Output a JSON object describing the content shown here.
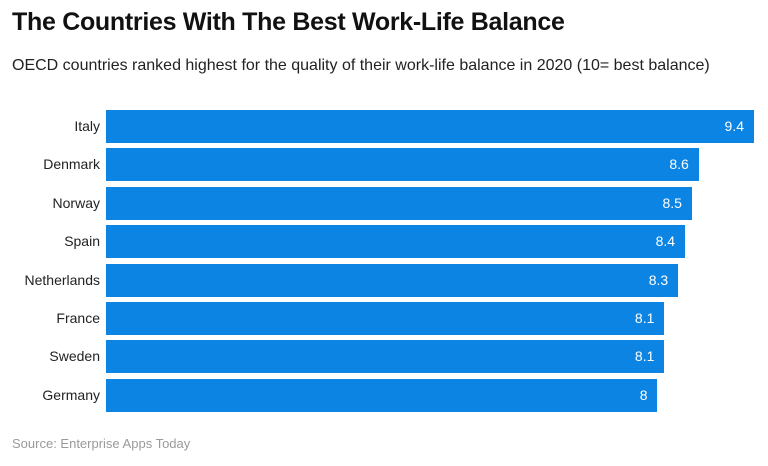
{
  "title": "The Countries With The Best Work-Life Balance",
  "subtitle": "OECD countries ranked highest for the quality of their work-life balance in 2020 (10= best balance)",
  "source": "Source: Enterprise Apps Today",
  "colors": {
    "bar": "#0b84e3",
    "value_text": "#ffffff",
    "label_text": "#222222",
    "source_text": "#9a9a9a"
  },
  "chart_data": {
    "type": "bar",
    "orientation": "horizontal",
    "title": "The Countries With The Best Work-Life Balance",
    "subtitle": "OECD countries ranked highest for the quality of their work-life balance in 2020 (10= best balance)",
    "categories": [
      "Italy",
      "Denmark",
      "Norway",
      "Spain",
      "Netherlands",
      "France",
      "Sweden",
      "Germany"
    ],
    "values": [
      9.4,
      8.6,
      8.5,
      8.4,
      8.3,
      8.1,
      8.1,
      8
    ],
    "value_labels": [
      "9.4",
      "8.6",
      "8.5",
      "8.4",
      "8.3",
      "8.1",
      "8.1",
      "8"
    ],
    "xlabel": "",
    "ylabel": "",
    "xlim": [
      0,
      9.4
    ],
    "grid": false,
    "legend": "none",
    "data_labels": "inside-end",
    "source": "Source: Enterprise Apps Today"
  }
}
